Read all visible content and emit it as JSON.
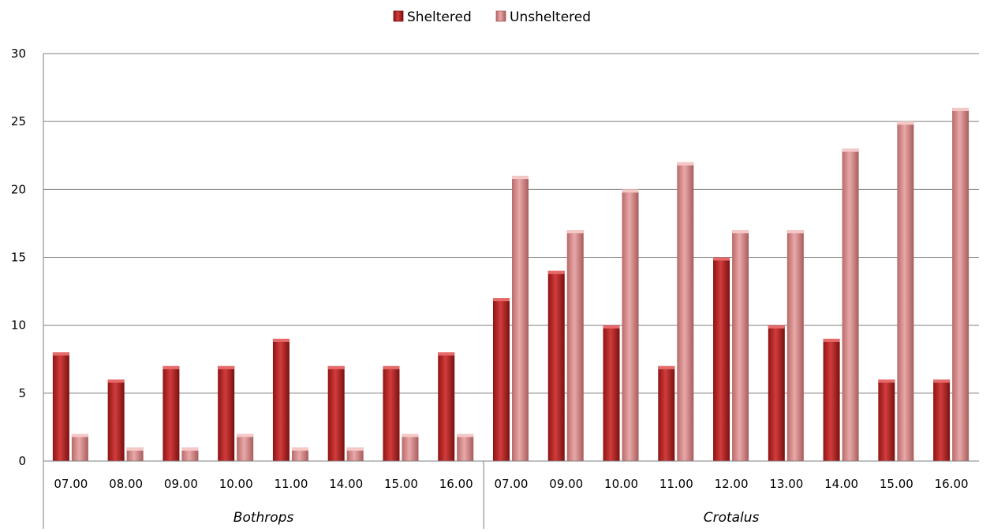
{
  "chart_data": {
    "type": "bar",
    "groups": [
      {
        "name": "Bothrops",
        "categories": [
          "07.00",
          "08.00",
          "09.00",
          "10.00",
          "11.00",
          "14.00",
          "15.00",
          "16.00"
        ]
      },
      {
        "name": "Crotalus",
        "categories": [
          "07.00",
          "09.00",
          "10.00",
          "11.00",
          "12.00",
          "13.00",
          "14.00",
          "15.00",
          "16.00"
        ]
      }
    ],
    "series": [
      {
        "name": "Sheltered",
        "color": "#b52a2a",
        "values": [
          8,
          6,
          7,
          7,
          9,
          7,
          7,
          8,
          12,
          14,
          10,
          7,
          15,
          10,
          9,
          6,
          6
        ]
      },
      {
        "name": "Unsheltered",
        "color": "#d98a8a",
        "values": [
          2,
          1,
          1,
          2,
          1,
          1,
          2,
          2,
          21,
          17,
          20,
          22,
          17,
          17,
          23,
          25,
          26
        ]
      }
    ],
    "ylim": [
      0,
      30
    ],
    "yticks": [
      0,
      5,
      10,
      15,
      20,
      25,
      30
    ],
    "grid": true,
    "legend": "top-center",
    "title": "",
    "xlabel": "",
    "ylabel": ""
  }
}
